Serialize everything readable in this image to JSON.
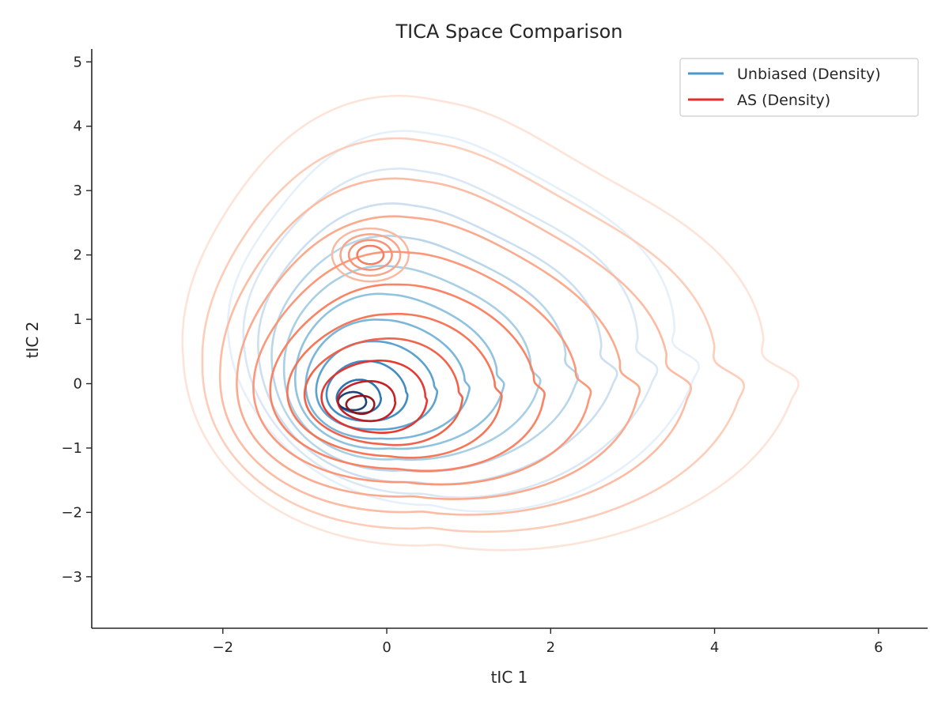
{
  "chart_data": {
    "type": "contour",
    "title": "TICA Space Comparison",
    "xlabel": "tIC 1",
    "ylabel": "tIC 2",
    "xlim": [
      -3.6,
      6.6
    ],
    "ylim": [
      -3.8,
      5.2
    ],
    "xticks": [
      -2,
      0,
      2,
      4,
      6
    ],
    "yticks": [
      -3,
      -2,
      -1,
      0,
      1,
      2,
      3,
      4,
      5
    ],
    "grid": false,
    "legend_position": "top-right",
    "series": [
      {
        "name": "Unbiased (Density)",
        "legend_color": "#4a98c9",
        "peak_x": -0.45,
        "peak_y": -0.3,
        "secondary_peak_x": -0.2,
        "secondary_peak_y": 2.0,
        "x_extent": [
          -2.0,
          3.2
        ],
        "y_extent": [
          -1.9,
          3.2
        ],
        "levels": [
          {
            "level": 1,
            "color": "#e3eef9"
          },
          {
            "level": 2,
            "color": "#d6e6f4"
          },
          {
            "level": 3,
            "color": "#c6dbef"
          },
          {
            "level": 4,
            "color": "#b0d2e8"
          },
          {
            "level": 5,
            "color": "#9ecae1"
          },
          {
            "level": 6,
            "color": "#84bcdb"
          },
          {
            "level": 7,
            "color": "#6baed6"
          },
          {
            "level": 8,
            "color": "#4a98c9"
          },
          {
            "level": 9,
            "color": "#2e7ebc"
          },
          {
            "level": 10,
            "color": "#1764ab"
          },
          {
            "level": 11,
            "color": "#08306b"
          }
        ]
      },
      {
        "name": "AS (Density)",
        "legend_color": "#e32f27",
        "peak_x": -0.35,
        "peak_y": -0.35,
        "secondary_peak_x": -0.2,
        "secondary_peak_y": 2.0,
        "x_extent": [
          -2.7,
          4.1
        ],
        "y_extent": [
          -2.6,
          3.5
        ],
        "levels": [
          {
            "level": 1,
            "color": "#fee3d6"
          },
          {
            "level": 2,
            "color": "#fdcab5"
          },
          {
            "level": 3,
            "color": "#fcb89e"
          },
          {
            "level": 4,
            "color": "#fca588"
          },
          {
            "level": 5,
            "color": "#fc9272"
          },
          {
            "level": 6,
            "color": "#fb7c5c"
          },
          {
            "level": 7,
            "color": "#f5704e"
          },
          {
            "level": 8,
            "color": "#ef5b40"
          },
          {
            "level": 9,
            "color": "#e32f27"
          },
          {
            "level": 10,
            "color": "#c1161b"
          },
          {
            "level": 11,
            "color": "#8f0d13"
          }
        ]
      }
    ]
  }
}
